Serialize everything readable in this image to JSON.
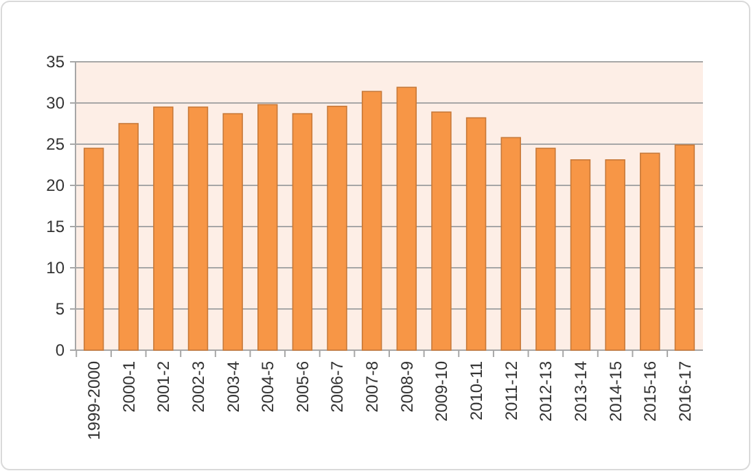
{
  "chart_data": {
    "type": "bar",
    "categories": [
      "1999-2000",
      "2000-1",
      "2001-2",
      "2002-3",
      "2003-4",
      "2004-5",
      "2005-6",
      "2006-7",
      "2007-8",
      "2008-9",
      "2009-10",
      "2010-11",
      "2011-12",
      "2012-13",
      "2013-14",
      "2014-15",
      "2015-16",
      "2016-17"
    ],
    "values": [
      24.5,
      27.5,
      29.5,
      29.5,
      28.7,
      29.8,
      28.7,
      29.6,
      31.4,
      31.9,
      28.9,
      28.2,
      25.8,
      24.5,
      23.1,
      23.1,
      23.9,
      24.9
    ],
    "color": "#f79646",
    "ylim": [
      0,
      35
    ],
    "yticks": [
      0,
      5,
      10,
      15,
      20,
      25,
      30,
      35
    ],
    "grid": "y"
  }
}
